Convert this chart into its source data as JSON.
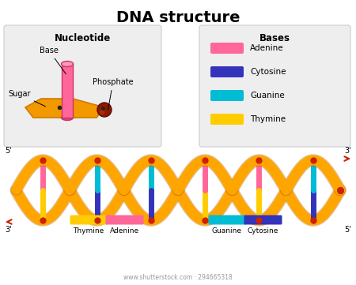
{
  "title": "DNA structure",
  "title_fontsize": 14,
  "title_fontweight": "bold",
  "background_color": "#ffffff",
  "nucleotide_box_color": "#eeeeee",
  "bases_box_color": "#eeeeee",
  "nucleotide_label": "Nucleotide",
  "bases_label": "Bases",
  "sugar_label": "Sugar",
  "base_label": "Base",
  "phosphate_label": "Phosphate",
  "bases_items": [
    {
      "name": "Adenine",
      "color": "#ff6699"
    },
    {
      "name": "Cytosine",
      "color": "#3333bb"
    },
    {
      "name": "Guanine",
      "color": "#00bcd4"
    },
    {
      "name": "Thymine",
      "color": "#ffcc00"
    }
  ],
  "strand_color": "#FFA500",
  "strand_dark": "#cc7700",
  "adenine_color": "#ff6699",
  "thymine_color": "#ffcc00",
  "cytosine_color": "#3333bb",
  "guanine_color": "#00bcd4",
  "node_color": "#cc2200",
  "arrow_color": "#cc2200",
  "label_5prime": "5'",
  "label_3prime": "3'",
  "bottom_labels": [
    "Thymine",
    "Adenine",
    "Guanine",
    "Cytosine"
  ],
  "watermark": "www.shutterstock.com · 294665318",
  "watermark_color": "#999999"
}
